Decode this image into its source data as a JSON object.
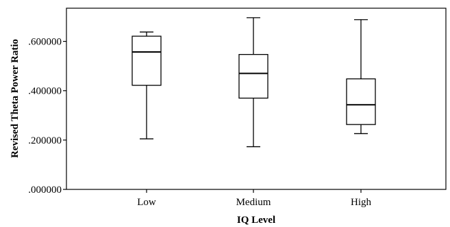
{
  "chart_data": {
    "type": "boxplot",
    "title": "",
    "xlabel": "IQ Level",
    "ylabel": "Revised Theta Power Ratio",
    "categories": [
      "Low",
      "Medium",
      "High"
    ],
    "ylim": [
      0.0,
      0.7345
    ],
    "yticks": [
      0.0,
      0.2,
      0.4,
      0.6
    ],
    "ytick_labels": [
      ".000000",
      ".200000",
      ".400000",
      ".600000"
    ],
    "grid": false,
    "legend": "none",
    "boxes": [
      {
        "category": "Low",
        "whisker_low": 0.205,
        "q1": 0.422,
        "median": 0.557,
        "q3": 0.621,
        "whisker_high": 0.638
      },
      {
        "category": "Medium",
        "whisker_low": 0.173,
        "q1": 0.37,
        "median": 0.47,
        "q3": 0.547,
        "whisker_high": 0.696
      },
      {
        "category": "High",
        "whisker_low": 0.226,
        "q1": 0.263,
        "median": 0.343,
        "q3": 0.448,
        "whisker_high": 0.688
      }
    ],
    "colors": {
      "box_fill": "#ffffff",
      "stroke": "#000000"
    }
  }
}
